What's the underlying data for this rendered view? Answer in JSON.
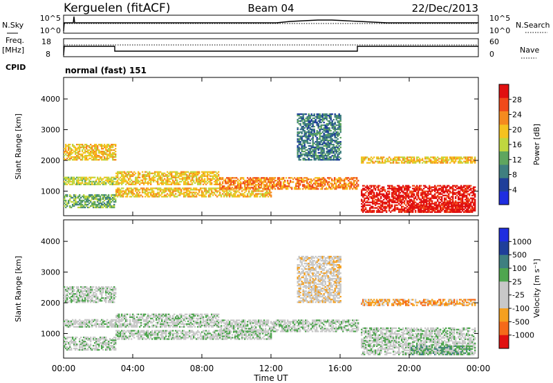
{
  "header": {
    "station": "Kerguelen (fitACF)",
    "beam": "Beam 04",
    "date": "22/Dec/2013"
  },
  "nsky_panel": {
    "left_label": "N.Sky",
    "right_label": "N.Search",
    "left_ticks": [
      "10^5",
      "10^0"
    ],
    "right_ticks": [
      "10^5",
      "10^0"
    ]
  },
  "freq_panel": {
    "left_label_top": "Freq.",
    "left_label_unit": "[MHz]",
    "left_ticks": [
      "18",
      "8"
    ],
    "right_ticks": [
      "60",
      "0"
    ],
    "right_label": "Nave"
  },
  "cpid": {
    "label": "CPID",
    "value": "normal (fast) 151"
  },
  "colors": {
    "power_scale": [
      "#1f2ee0",
      "#1f3f9a",
      "#3f7f80",
      "#5fa65f",
      "#bfd63f",
      "#f5c21f",
      "#f58a1f",
      "#f04a1a",
      "#e01010"
    ],
    "velocity_scale": [
      "#1f2ee0",
      "#1f3f9a",
      "#3f7f80",
      "#4fa64f",
      "#c8c8c8",
      "#c8c8c8",
      "#f5a01f",
      "#f56a1a",
      "#e01010"
    ]
  },
  "chart_data": [
    {
      "type": "heatmap",
      "name": "power",
      "title": "",
      "ylabel": "Slant Range [km]",
      "ylim": [
        200,
        4700
      ],
      "yticks": [
        "1000",
        "2000",
        "3000",
        "4000"
      ],
      "colorbar": {
        "label": "Power [dB]",
        "ticks": [
          "4",
          "8",
          "12",
          "16",
          "20",
          "24",
          "28"
        ]
      }
    },
    {
      "type": "heatmap",
      "name": "velocity",
      "title": "",
      "ylabel": "Slant Range [km]",
      "ylim": [
        200,
        4700
      ],
      "yticks": [
        "1000",
        "2000",
        "3000",
        "4000"
      ],
      "colorbar": {
        "label": "Velocity [m s⁻¹]",
        "ticks": [
          "1000",
          "500",
          "100",
          "25",
          "-25",
          "-100",
          "-500",
          "-1000"
        ]
      }
    }
  ],
  "x_axis": {
    "label": "Time UT",
    "ticks": [
      "00:00",
      "04:00",
      "08:00",
      "12:00",
      "16:00",
      "20:00",
      "00:00"
    ],
    "range_hours": [
      0,
      24
    ]
  },
  "echo_regions": [
    {
      "t0": 0.0,
      "t1": 3.0,
      "r0": 2000,
      "r1": 2500,
      "power": 5,
      "vel": 4
    },
    {
      "t0": 0.0,
      "t1": 3.0,
      "r0": 1200,
      "r1": 1450,
      "power": 4,
      "vel": 4
    },
    {
      "t0": 0.0,
      "t1": 3.0,
      "r0": 450,
      "r1": 900,
      "power": 3,
      "vel": 4
    },
    {
      "t0": 3.0,
      "t1": 9.0,
      "r0": 1200,
      "r1": 1650,
      "power": 5,
      "vel": 4
    },
    {
      "t0": 3.0,
      "t1": 12.0,
      "r0": 800,
      "r1": 1100,
      "power": 5,
      "vel": 4
    },
    {
      "t0": 9.0,
      "t1": 17.0,
      "r0": 1050,
      "r1": 1450,
      "power": 6,
      "vel": 4
    },
    {
      "t0": 13.5,
      "t1": 16.0,
      "r0": 2000,
      "r1": 3500,
      "power": 2,
      "vel": 5
    },
    {
      "t0": 17.2,
      "t1": 23.8,
      "r0": 300,
      "r1": 1200,
      "power": 8,
      "vel": 4
    },
    {
      "t0": 17.2,
      "t1": 23.8,
      "r0": 1900,
      "r1": 2100,
      "power": 5,
      "vel": 6
    },
    {
      "t0": 20.0,
      "t1": 23.5,
      "r0": 300,
      "r1": 600,
      "power": 8,
      "vel": 3
    }
  ]
}
